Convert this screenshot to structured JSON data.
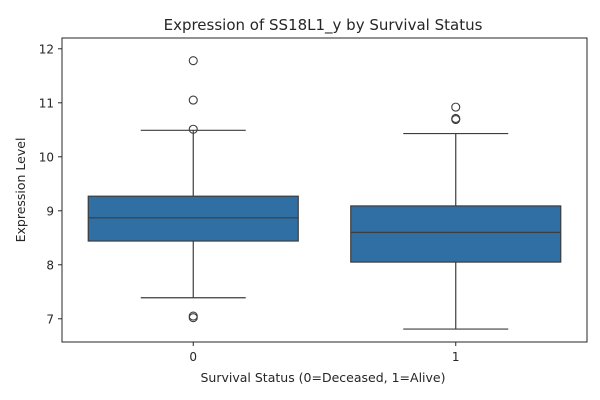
{
  "chart_data": {
    "type": "box",
    "title": "Expression of SS18L1_y by Survival Status",
    "xlabel": "Survival Status (0=Deceased, 1=Alive)",
    "ylabel": "Expression Level",
    "categories": [
      "0",
      "1"
    ],
    "ylim": [
      6.57,
      12.2
    ],
    "yticks": [
      7,
      8,
      9,
      10,
      11,
      12
    ],
    "grid": false,
    "box_color": "#2f6fa4",
    "line_color": "#3d3d3d",
    "boxes": [
      {
        "category": "0",
        "whisker_low": 7.39,
        "q1": 8.44,
        "median": 8.87,
        "q3": 9.27,
        "whisker_high": 10.49,
        "outliers": [
          11.78,
          11.05,
          10.51,
          7.05,
          7.02
        ]
      },
      {
        "category": "1",
        "whisker_low": 6.81,
        "q1": 8.05,
        "median": 8.6,
        "q3": 9.09,
        "whisker_high": 10.43,
        "outliers": [
          10.92,
          10.71,
          10.69
        ]
      }
    ]
  }
}
